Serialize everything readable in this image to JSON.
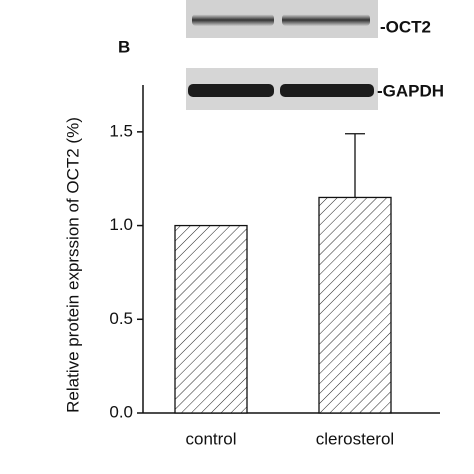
{
  "chart_data": {
    "type": "bar",
    "y_label": "Relative protein exprssion of  OCT2 (%)",
    "categories": [
      "control",
      "clerosterol"
    ],
    "values": [
      1.0,
      1.15
    ],
    "errors": [
      null,
      0.34
    ],
    "color": "#ffffff",
    "ylim": [
      0,
      1.75
    ],
    "yticks": [
      {
        "value": 0,
        "label": "0.0"
      },
      0.5,
      {
        "value": 1,
        "label": "1.0"
      },
      1.5
    ],
    "annotations": [
      "B",
      "-OCT2",
      "-GAPDH"
    ]
  }
}
